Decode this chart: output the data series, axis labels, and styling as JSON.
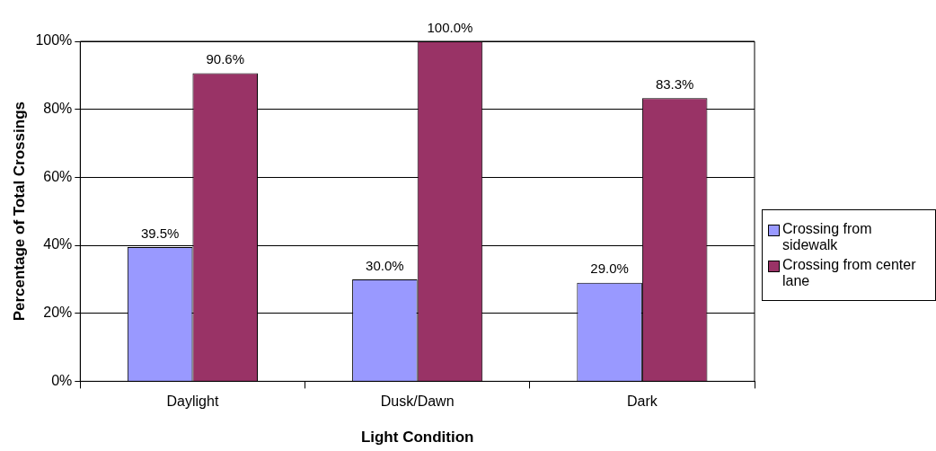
{
  "chart_data": {
    "type": "bar",
    "xlabel": "Light Condition",
    "ylabel": "Percentage of Total Crossings",
    "categories": [
      "Daylight",
      "Dusk/Dawn",
      "Dark"
    ],
    "series": [
      {
        "name": "Crossing from sidewalk",
        "color": "#9999ff",
        "values": [
          39.5,
          30.0,
          29.0
        ],
        "value_labels": [
          "39.5%",
          "30.0%",
          "29.0%"
        ]
      },
      {
        "name": "Crossing from center lane",
        "color": "#993366",
        "values": [
          90.6,
          100.0,
          83.3
        ],
        "value_labels": [
          "90.6%",
          "100.0%",
          "83.3%"
        ]
      }
    ],
    "ylim": [
      0,
      100
    ],
    "yticks": [
      {
        "value": 0,
        "label": "0%"
      },
      {
        "value": 20,
        "label": "20%"
      },
      {
        "value": 40,
        "label": "40%"
      },
      {
        "value": 60,
        "label": "60%"
      },
      {
        "value": 80,
        "label": "80%"
      },
      {
        "value": 100,
        "label": "100%"
      }
    ],
    "grid": "y",
    "legend": "right"
  }
}
